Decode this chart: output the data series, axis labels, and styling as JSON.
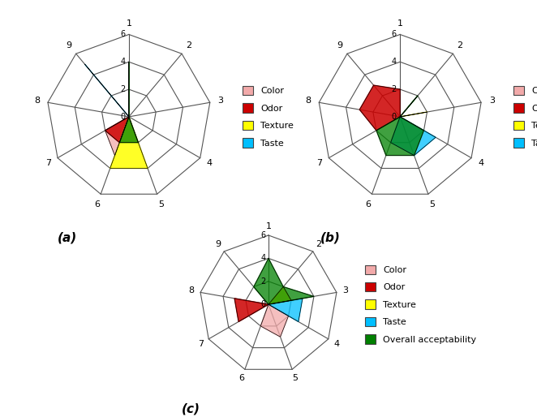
{
  "num_vars": 9,
  "spoke_labels": [
    "1",
    "2",
    "3",
    "4",
    "5",
    "6",
    "7",
    "8",
    "9"
  ],
  "radial_ticks": [
    2,
    4,
    6
  ],
  "max_val": 6,
  "chart_a": {
    "series": [
      {
        "name": "Color",
        "color": "#F2AAAA",
        "alpha": 0.75,
        "values": [
          0,
          0,
          0,
          0,
          0,
          3,
          2,
          0,
          0
        ]
      },
      {
        "name": "Odor",
        "color": "#CC0000",
        "alpha": 0.85,
        "values": [
          0,
          0,
          0,
          0,
          0,
          2,
          2,
          0,
          0
        ]
      },
      {
        "name": "Texture",
        "color": "#FFFF00",
        "alpha": 0.85,
        "values": [
          0,
          0,
          0,
          0,
          4,
          4,
          0,
          0,
          0
        ]
      },
      {
        "name": "Taste",
        "color": "#00BFFF",
        "alpha": 0.75,
        "values": [
          0,
          0,
          0,
          0,
          0,
          0,
          0,
          0,
          5
        ]
      },
      {
        "name": "Overall acceptability",
        "color": "#008000",
        "alpha": 0.75,
        "values": [
          4,
          0,
          0,
          0,
          2,
          2,
          0,
          0,
          0
        ]
      }
    ],
    "legend_items": [
      "Color",
      "Odor",
      "Texture",
      "Taste"
    ]
  },
  "chart_b": {
    "series": [
      {
        "name": "Color",
        "color": "#F2AAAA",
        "alpha": 0.75,
        "values": [
          0,
          0,
          0,
          0,
          0,
          0,
          0,
          0,
          0
        ]
      },
      {
        "name": "Odor",
        "color": "#CC0000",
        "alpha": 0.85,
        "values": [
          2,
          0,
          0,
          0,
          0,
          0,
          2,
          3,
          3
        ]
      },
      {
        "name": "Texture",
        "color": "#FFFF00",
        "alpha": 0.85,
        "values": [
          0,
          0,
          2,
          0,
          0,
          0,
          0,
          0,
          0
        ]
      },
      {
        "name": "Taste",
        "color": "#00BFFF",
        "alpha": 0.75,
        "values": [
          0,
          0,
          0,
          3,
          3,
          2,
          0,
          0,
          0
        ]
      },
      {
        "name": "Overall acceptability",
        "color": "#008000",
        "alpha": 0.75,
        "values": [
          0,
          2,
          0,
          2,
          3,
          3,
          2,
          0,
          0
        ]
      }
    ],
    "legend_items": [
      "Color",
      "Odor",
      "Texture",
      "Taste"
    ]
  },
  "chart_c": {
    "series": [
      {
        "name": "Color",
        "color": "#F2AAAA",
        "alpha": 0.75,
        "values": [
          0,
          0,
          0,
          2,
          3,
          2,
          0,
          0,
          0
        ]
      },
      {
        "name": "Odor",
        "color": "#CC0000",
        "alpha": 0.85,
        "values": [
          0,
          0,
          0,
          0,
          0,
          0,
          3,
          3,
          0
        ]
      },
      {
        "name": "Texture",
        "color": "#FFFF00",
        "alpha": 0.85,
        "values": [
          0,
          2,
          2,
          0,
          0,
          0,
          0,
          0,
          0
        ]
      },
      {
        "name": "Taste",
        "color": "#00BFFF",
        "alpha": 0.75,
        "values": [
          0,
          0,
          3,
          3,
          0,
          0,
          0,
          0,
          0
        ]
      },
      {
        "name": "Overall acceptability",
        "color": "#008000",
        "alpha": 0.75,
        "values": [
          4,
          2,
          4,
          0,
          0,
          0,
          0,
          0,
          2
        ]
      }
    ],
    "legend_items": [
      "Color",
      "Odor",
      "Texture",
      "Taste",
      "Overall acceptability"
    ]
  },
  "subtitle_a": "(a)",
  "subtitle_b": "(b)",
  "subtitle_c": "(c)"
}
